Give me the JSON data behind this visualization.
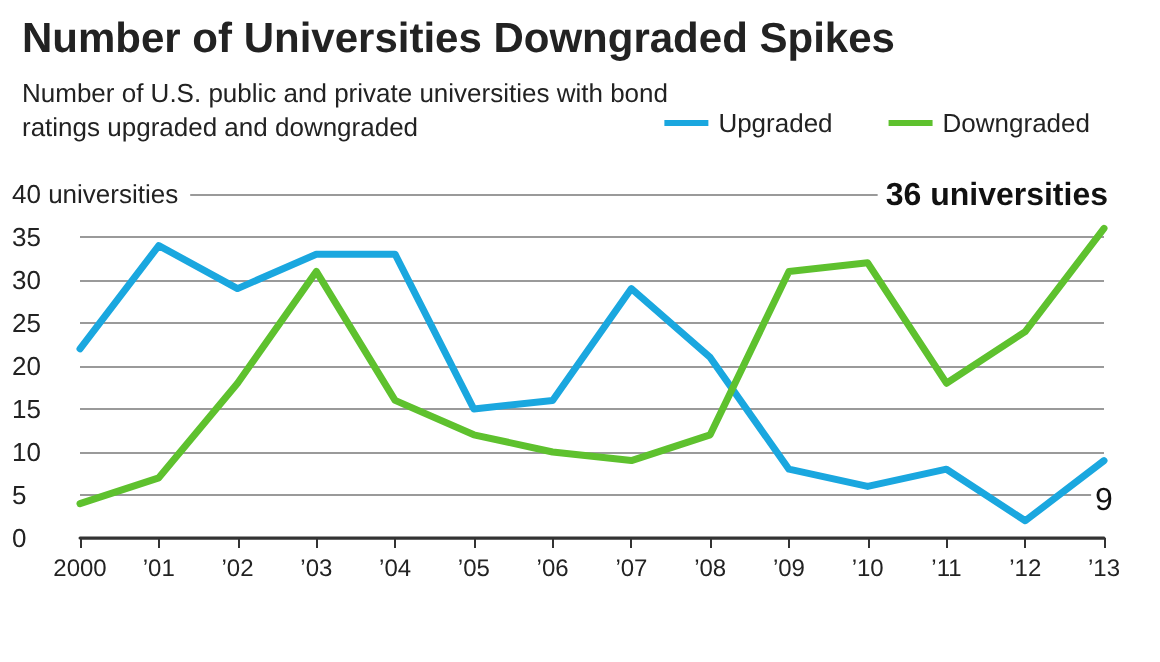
{
  "chart_data": {
    "type": "line",
    "title": "Number of Universities Downgraded Spikes",
    "subtitle": "Number of U.S. public and private universities with bond ratings upgraded and downgraded",
    "categories": [
      "2000",
      "’01",
      "’02",
      "’03",
      "’04",
      "’05",
      "’06",
      "’07",
      "’08",
      "’09",
      "’10",
      "’11",
      "’12",
      "’13"
    ],
    "series": [
      {
        "name": "Upgraded",
        "color": "#1aa7df",
        "values": [
          22,
          34,
          29,
          33,
          33,
          15,
          16,
          29,
          21,
          8,
          6,
          8,
          2,
          9
        ]
      },
      {
        "name": "Downgraded",
        "color": "#5ec12e",
        "values": [
          4,
          7,
          18,
          31,
          16,
          12,
          10,
          9,
          12,
          31,
          32,
          18,
          24,
          36
        ]
      }
    ],
    "ylim": [
      0,
      40
    ],
    "yticks": [
      0,
      5,
      10,
      15,
      20,
      25,
      30,
      35,
      {
        "value": 40,
        "label": "40 universities"
      }
    ],
    "annotations": [
      {
        "text": "36 universities",
        "x": "’13",
        "y": 36
      },
      {
        "text": "9",
        "x": "’13",
        "y": 9
      }
    ],
    "grid": "y",
    "legend": "top right",
    "marker": "none",
    "line_style": "solid"
  }
}
